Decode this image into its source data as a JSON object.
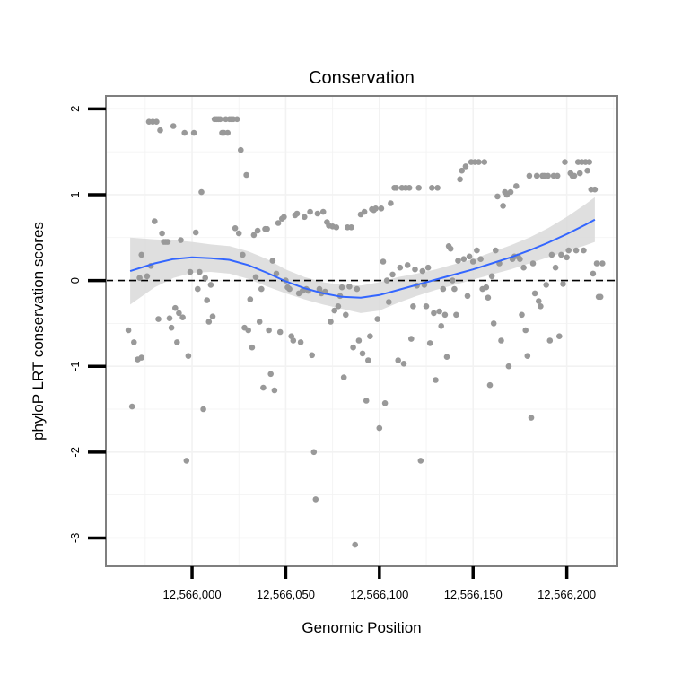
{
  "chart_data": {
    "type": "scatter",
    "title": "Conservation",
    "xlabel": "Genomic Position",
    "ylabel": "phyloP LRT conservation scores",
    "xlim": [
      12565954,
      12566227
    ],
    "ylim": [
      -3.33,
      2.15
    ],
    "x_ticks": [
      12566000,
      12566050,
      12566100,
      12566150,
      12566200
    ],
    "x_tick_labels": [
      "12,566,000",
      "12,566,050",
      "12,566,100",
      "12,566,150",
      "12,566,200"
    ],
    "y_ticks": [
      -3,
      -2,
      -1,
      0,
      1,
      2
    ],
    "y_tick_labels": [
      "-3",
      "-2",
      "-1",
      "0",
      "1",
      "2"
    ],
    "reference_line": {
      "y": 0,
      "style": "dashed"
    },
    "grid": true,
    "colors": {
      "points": "#999999",
      "smooth_line": "#3366FF",
      "confidence_band": "#d9d9d9",
      "panel_border": "#7f7f7f",
      "gridlines": "#f2f2f2"
    },
    "smooth": {
      "x": [
        12565967,
        12565980,
        12565990,
        12566000,
        12566010,
        12566020,
        12566030,
        12566040,
        12566050,
        12566060,
        12566070,
        12566080,
        12566090,
        12566100,
        12566110,
        12566120,
        12566130,
        12566140,
        12566150,
        12566160,
        12566170,
        12566180,
        12566190,
        12566200,
        12566210,
        12566215
      ],
      "y": [
        0.11,
        0.2,
        0.25,
        0.27,
        0.26,
        0.24,
        0.18,
        0.09,
        -0.01,
        -0.09,
        -0.15,
        -0.19,
        -0.2,
        -0.17,
        -0.11,
        -0.05,
        0.01,
        0.07,
        0.13,
        0.2,
        0.27,
        0.35,
        0.44,
        0.54,
        0.65,
        0.71
      ],
      "ymin": [
        -0.28,
        -0.08,
        0.03,
        0.09,
        0.1,
        0.08,
        0.02,
        -0.07,
        -0.15,
        -0.22,
        -0.28,
        -0.33,
        -0.38,
        -0.35,
        -0.26,
        -0.18,
        -0.11,
        -0.05,
        0.01,
        0.07,
        0.13,
        0.2,
        0.27,
        0.34,
        0.41,
        0.45
      ],
      "ymax": [
        0.5,
        0.48,
        0.47,
        0.45,
        0.42,
        0.4,
        0.34,
        0.25,
        0.13,
        0.04,
        -0.02,
        -0.05,
        -0.06,
        -0.02,
        0.04,
        0.08,
        0.13,
        0.19,
        0.25,
        0.33,
        0.41,
        0.5,
        0.61,
        0.74,
        0.89,
        0.97
      ]
    },
    "points": [
      [
        12565968,
        -1.47
      ],
      [
        12565966,
        -0.58
      ],
      [
        12565969,
        -0.72
      ],
      [
        12565971,
        -0.92
      ],
      [
        12565973,
        -0.9
      ],
      [
        12565972,
        0.03
      ],
      [
        12565973,
        0.3
      ],
      [
        12565976,
        0.05
      ],
      [
        12565978,
        0.17
      ],
      [
        12565977,
        1.85
      ],
      [
        12565979,
        1.85
      ],
      [
        12565981,
        1.85
      ],
      [
        12565980,
        0.69
      ],
      [
        12565982,
        -0.45
      ],
      [
        12565983,
        1.75
      ],
      [
        12565984,
        0.55
      ],
      [
        12565985,
        0.45
      ],
      [
        12565986,
        0.45
      ],
      [
        12565987,
        0.45
      ],
      [
        12565988,
        -0.44
      ],
      [
        12565989,
        -0.55
      ],
      [
        12565990,
        1.8
      ],
      [
        12565991,
        -0.32
      ],
      [
        12565992,
        -0.72
      ],
      [
        12565993,
        -0.38
      ],
      [
        12565994,
        0.47
      ],
      [
        12565995,
        -0.43
      ],
      [
        12565996,
        1.72
      ],
      [
        12565997,
        -2.1
      ],
      [
        12565998,
        -0.88
      ],
      [
        12565999,
        0.1
      ],
      [
        12566001,
        1.72
      ],
      [
        12566002,
        0.56
      ],
      [
        12566003,
        -0.1
      ],
      [
        12566004,
        0.1
      ],
      [
        12566005,
        1.03
      ],
      [
        12566006,
        -1.5
      ],
      [
        12566007,
        0.03
      ],
      [
        12566008,
        -0.23
      ],
      [
        12566009,
        -0.48
      ],
      [
        12566010,
        -0.05
      ],
      [
        12566011,
        -0.42
      ],
      [
        12566012,
        1.88
      ],
      [
        12566013,
        1.88
      ],
      [
        12566014,
        1.88
      ],
      [
        12566015,
        1.88
      ],
      [
        12566016,
        1.72
      ],
      [
        12566017,
        1.72
      ],
      [
        12566018,
        1.88
      ],
      [
        12566019,
        1.72
      ],
      [
        12566020,
        1.88
      ],
      [
        12566021,
        1.88
      ],
      [
        12566022,
        1.88
      ],
      [
        12566023,
        0.61
      ],
      [
        12566024,
        1.88
      ],
      [
        12566025,
        0.55
      ],
      [
        12566026,
        1.52
      ],
      [
        12566027,
        0.3
      ],
      [
        12566028,
        -0.55
      ],
      [
        12566029,
        1.23
      ],
      [
        12566030,
        -0.58
      ],
      [
        12566031,
        -0.22
      ],
      [
        12566032,
        -0.78
      ],
      [
        12566033,
        0.53
      ],
      [
        12566034,
        0.04
      ],
      [
        12566035,
        0.58
      ],
      [
        12566036,
        -0.48
      ],
      [
        12566037,
        -0.1
      ],
      [
        12566038,
        -1.25
      ],
      [
        12566039,
        0.6
      ],
      [
        12566040,
        0.6
      ],
      [
        12566041,
        -0.58
      ],
      [
        12566042,
        -1.09
      ],
      [
        12566043,
        0.23
      ],
      [
        12566044,
        -1.28
      ],
      [
        12566045,
        0.08
      ],
      [
        12566046,
        0.67
      ],
      [
        12566047,
        -0.6
      ],
      [
        12566048,
        0.72
      ],
      [
        12566049,
        0.74
      ],
      [
        12566050,
        0.0
      ],
      [
        12566051,
        -0.08
      ],
      [
        12566052,
        -0.1
      ],
      [
        12566053,
        -0.65
      ],
      [
        12566054,
        -0.7
      ],
      [
        12566055,
        0.76
      ],
      [
        12566056,
        0.78
      ],
      [
        12566057,
        -0.15
      ],
      [
        12566058,
        -0.72
      ],
      [
        12566059,
        -0.12
      ],
      [
        12566060,
        0.74
      ],
      [
        12566061,
        -0.1
      ],
      [
        12566062,
        -0.12
      ],
      [
        12566063,
        0.8
      ],
      [
        12566064,
        -0.87
      ],
      [
        12566065,
        -2.0
      ],
      [
        12566066,
        -2.55
      ],
      [
        12566067,
        0.78
      ],
      [
        12566068,
        -0.1
      ],
      [
        12566069,
        -0.15
      ],
      [
        12566070,
        0.8
      ],
      [
        12566071,
        -0.13
      ],
      [
        12566072,
        0.68
      ],
      [
        12566073,
        0.64
      ],
      [
        12566074,
        -0.48
      ],
      [
        12566075,
        0.63
      ],
      [
        12566076,
        -0.35
      ],
      [
        12566077,
        0.62
      ],
      [
        12566078,
        -0.3
      ],
      [
        12566079,
        -0.18
      ],
      [
        12566080,
        -0.08
      ],
      [
        12566081,
        -1.13
      ],
      [
        12566082,
        -0.4
      ],
      [
        12566083,
        0.62
      ],
      [
        12566084,
        -0.07
      ],
      [
        12566085,
        0.62
      ],
      [
        12566086,
        -0.78
      ],
      [
        12566087,
        -3.08
      ],
      [
        12566088,
        -0.1
      ],
      [
        12566089,
        -0.7
      ],
      [
        12566090,
        0.77
      ],
      [
        12566091,
        -0.85
      ],
      [
        12566092,
        0.8
      ],
      [
        12566093,
        -1.4
      ],
      [
        12566094,
        -0.93
      ],
      [
        12566095,
        -0.65
      ],
      [
        12566096,
        0.83
      ],
      [
        12566097,
        0.82
      ],
      [
        12566098,
        0.84
      ],
      [
        12566099,
        -0.45
      ],
      [
        12566100,
        -1.72
      ],
      [
        12566101,
        0.84
      ],
      [
        12566102,
        0.22
      ],
      [
        12566103,
        -1.43
      ],
      [
        12566104,
        0.0
      ],
      [
        12566105,
        -0.25
      ],
      [
        12566106,
        0.9
      ],
      [
        12566107,
        0.07
      ],
      [
        12566108,
        1.08
      ],
      [
        12566109,
        1.08
      ],
      [
        12566110,
        -0.93
      ],
      [
        12566111,
        0.15
      ],
      [
        12566112,
        1.08
      ],
      [
        12566113,
        -0.97
      ],
      [
        12566114,
        1.08
      ],
      [
        12566115,
        0.18
      ],
      [
        12566116,
        1.08
      ],
      [
        12566117,
        -0.68
      ],
      [
        12566118,
        -0.3
      ],
      [
        12566119,
        0.13
      ],
      [
        12566120,
        -0.06
      ],
      [
        12566121,
        1.08
      ],
      [
        12566122,
        -2.1
      ],
      [
        12566123,
        0.11
      ],
      [
        12566124,
        -0.05
      ],
      [
        12566125,
        -0.3
      ],
      [
        12566126,
        0.15
      ],
      [
        12566127,
        -0.73
      ],
      [
        12566128,
        1.08
      ],
      [
        12566129,
        -0.38
      ],
      [
        12566130,
        -1.16
      ],
      [
        12566131,
        1.08
      ],
      [
        12566132,
        -0.36
      ],
      [
        12566133,
        -0.53
      ],
      [
        12566134,
        -0.1
      ],
      [
        12566135,
        -0.4
      ],
      [
        12566136,
        -0.89
      ],
      [
        12566137,
        0.4
      ],
      [
        12566138,
        0.37
      ],
      [
        12566139,
        0.0
      ],
      [
        12566140,
        -0.1
      ],
      [
        12566141,
        -0.4
      ],
      [
        12566142,
        0.23
      ],
      [
        12566143,
        1.18
      ],
      [
        12566144,
        1.28
      ],
      [
        12566145,
        0.25
      ],
      [
        12566146,
        1.33
      ],
      [
        12566147,
        -0.18
      ],
      [
        12566148,
        0.28
      ],
      [
        12566149,
        1.38
      ],
      [
        12566150,
        0.22
      ],
      [
        12566151,
        1.38
      ],
      [
        12566152,
        0.35
      ],
      [
        12566153,
        1.38
      ],
      [
        12566154,
        0.25
      ],
      [
        12566155,
        -0.1
      ],
      [
        12566156,
        1.38
      ],
      [
        12566157,
        -0.08
      ],
      [
        12566158,
        -0.2
      ],
      [
        12566159,
        -1.22
      ],
      [
        12566160,
        0.05
      ],
      [
        12566161,
        -0.5
      ],
      [
        12566162,
        0.35
      ],
      [
        12566163,
        0.98
      ],
      [
        12566164,
        0.2
      ],
      [
        12566165,
        -0.7
      ],
      [
        12566166,
        0.87
      ],
      [
        12566167,
        1.03
      ],
      [
        12566168,
        1.0
      ],
      [
        12566169,
        -1.0
      ],
      [
        12566170,
        1.03
      ],
      [
        12566171,
        0.25
      ],
      [
        12566172,
        0.28
      ],
      [
        12566173,
        1.1
      ],
      [
        12566174,
        0.28
      ],
      [
        12566175,
        0.25
      ],
      [
        12566176,
        -0.4
      ],
      [
        12566177,
        0.15
      ],
      [
        12566178,
        -0.58
      ],
      [
        12566179,
        -0.88
      ],
      [
        12566180,
        1.22
      ],
      [
        12566181,
        -1.6
      ],
      [
        12566182,
        0.2
      ],
      [
        12566183,
        -0.15
      ],
      [
        12566184,
        1.22
      ],
      [
        12566185,
        -0.24
      ],
      [
        12566186,
        -0.3
      ],
      [
        12566187,
        1.22
      ],
      [
        12566188,
        1.22
      ],
      [
        12566189,
        -0.05
      ],
      [
        12566190,
        1.22
      ],
      [
        12566191,
        -0.7
      ],
      [
        12566192,
        0.3
      ],
      [
        12566193,
        1.22
      ],
      [
        12566194,
        0.15
      ],
      [
        12566195,
        1.22
      ],
      [
        12566196,
        -0.65
      ],
      [
        12566197,
        0.3
      ],
      [
        12566198,
        -0.04
      ],
      [
        12566199,
        1.38
      ],
      [
        12566200,
        0.27
      ],
      [
        12566201,
        0.35
      ],
      [
        12566202,
        1.25
      ],
      [
        12566203,
        1.22
      ],
      [
        12566204,
        1.22
      ],
      [
        12566205,
        0.35
      ],
      [
        12566206,
        1.38
      ],
      [
        12566207,
        1.25
      ],
      [
        12566208,
        1.38
      ],
      [
        12566209,
        0.35
      ],
      [
        12566210,
        1.38
      ],
      [
        12566211,
        1.28
      ],
      [
        12566212,
        1.38
      ],
      [
        12566213,
        1.06
      ],
      [
        12566214,
        0.08
      ],
      [
        12566215,
        1.06
      ],
      [
        12566216,
        0.2
      ],
      [
        12566217,
        -0.19
      ],
      [
        12566218,
        -0.19
      ],
      [
        12566219,
        0.2
      ]
    ]
  }
}
